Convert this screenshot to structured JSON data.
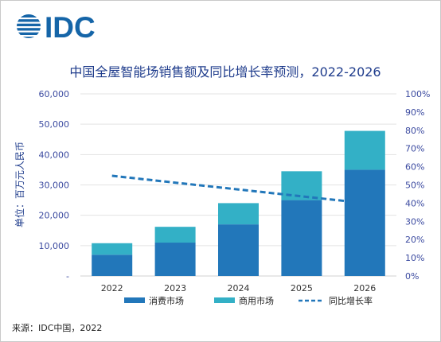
{
  "logo": {
    "text": "IDC"
  },
  "source": "来源：IDC中国，2022",
  "colors": {
    "consumer": "#2277ba",
    "commercial": "#33b0c6",
    "growth": "#2277ba",
    "title": "#1f3c8c",
    "axis_text": "#3b4aa0",
    "ylabel": "#1f3c8c",
    "logo": "#1565a8"
  },
  "chart_data": {
    "type": "bar",
    "stacked": true,
    "title": "中国全屋智能场销售额及同比增长率预测，2022-2026",
    "ylabel": "单位：百万元人民币",
    "categories": [
      "2022",
      "2023",
      "2024",
      "2025",
      "2026"
    ],
    "series": [
      {
        "name": "消费市场",
        "type": "bar",
        "axis": "left",
        "values": [
          7000,
          11000,
          17000,
          25000,
          35000
        ]
      },
      {
        "name": "商用市场",
        "type": "bar",
        "axis": "left",
        "values": [
          3800,
          5200,
          7000,
          9500,
          12800
        ]
      },
      {
        "name": "同比增长率",
        "type": "line",
        "style": "dashed",
        "axis": "right",
        "values": [
          null,
          null,
          null,
          null,
          null
        ],
        "line_start": {
          "x": "2022",
          "y": 55
        },
        "line_end": {
          "x": "2026",
          "y": 40
        }
      }
    ],
    "ylim": [
      0,
      60000
    ],
    "y_ticks": [
      "-",
      "10,000",
      "20,000",
      "30,000",
      "40,000",
      "50,000",
      "60,000"
    ],
    "y2lim": [
      0,
      100
    ],
    "y2_ticks": [
      "0%",
      "10%",
      "20%",
      "30%",
      "40%",
      "50%",
      "60%",
      "70%",
      "80%",
      "90%",
      "100%"
    ],
    "grid": true,
    "legend": "bottom"
  }
}
